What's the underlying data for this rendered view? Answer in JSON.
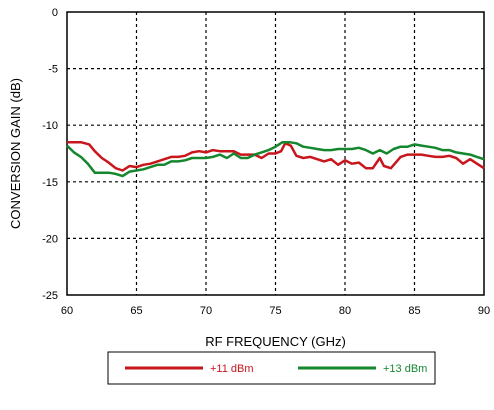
{
  "chart_data": {
    "type": "line",
    "title": "",
    "xlabel": "RF FREQUENCY (GHz)",
    "ylabel": "CONVERSION GAIN (dB)",
    "xlim": [
      60,
      90
    ],
    "ylim": [
      -25,
      0
    ],
    "x_ticks": [
      "60",
      "65",
      "70",
      "75",
      "80",
      "85",
      "90"
    ],
    "y_ticks": [
      "0",
      "-5",
      "-10",
      "-15",
      "-20",
      "-25"
    ],
    "grid": true,
    "legend_position": "bottom",
    "series": [
      {
        "name": "+11 dBm",
        "color": "#c8161d",
        "points": [
          [
            60,
            -11.5
          ],
          [
            61,
            -11.5
          ],
          [
            61.6,
            -11.7
          ],
          [
            62,
            -12.3
          ],
          [
            62.5,
            -12.9
          ],
          [
            63,
            -13.3
          ],
          [
            63.5,
            -13.8
          ],
          [
            64,
            -14.0
          ],
          [
            64.5,
            -13.6
          ],
          [
            65,
            -13.7
          ],
          [
            65.5,
            -13.5
          ],
          [
            66,
            -13.4
          ],
          [
            66.5,
            -13.2
          ],
          [
            67,
            -13.0
          ],
          [
            67.5,
            -12.8
          ],
          [
            68,
            -12.8
          ],
          [
            68.5,
            -12.7
          ],
          [
            69,
            -12.4
          ],
          [
            69.5,
            -12.3
          ],
          [
            70,
            -12.4
          ],
          [
            70.5,
            -12.2
          ],
          [
            71,
            -12.3
          ],
          [
            71.5,
            -12.3
          ],
          [
            72,
            -12.3
          ],
          [
            72.5,
            -12.6
          ],
          [
            73,
            -12.6
          ],
          [
            73.5,
            -12.6
          ],
          [
            74,
            -12.9
          ],
          [
            74.5,
            -12.5
          ],
          [
            75,
            -12.5
          ],
          [
            75.4,
            -12.3
          ],
          [
            75.7,
            -11.6
          ],
          [
            76.1,
            -11.8
          ],
          [
            76.5,
            -12.7
          ],
          [
            77,
            -12.9
          ],
          [
            77.5,
            -12.8
          ],
          [
            78,
            -13.0
          ],
          [
            78.5,
            -13.2
          ],
          [
            79,
            -13.0
          ],
          [
            79.5,
            -13.5
          ],
          [
            80,
            -13.1
          ],
          [
            80.5,
            -13.4
          ],
          [
            81,
            -13.3
          ],
          [
            81.5,
            -13.8
          ],
          [
            82,
            -13.8
          ],
          [
            82.5,
            -12.9
          ],
          [
            82.8,
            -13.6
          ],
          [
            83.3,
            -13.8
          ],
          [
            84,
            -12.8
          ],
          [
            84.5,
            -12.6
          ],
          [
            85,
            -12.6
          ],
          [
            85.5,
            -12.6
          ],
          [
            86,
            -12.7
          ],
          [
            86.5,
            -12.8
          ],
          [
            87,
            -12.8
          ],
          [
            87.5,
            -12.7
          ],
          [
            88,
            -12.9
          ],
          [
            88.5,
            -13.4
          ],
          [
            89,
            -13.0
          ],
          [
            89.5,
            -13.4
          ],
          [
            90,
            -13.8
          ]
        ]
      },
      {
        "name": "+13 dBm",
        "color": "#15872e",
        "points": [
          [
            60,
            -11.8
          ],
          [
            60.5,
            -12.4
          ],
          [
            61,
            -12.8
          ],
          [
            61.5,
            -13.4
          ],
          [
            62,
            -14.2
          ],
          [
            63,
            -14.2
          ],
          [
            63.5,
            -14.3
          ],
          [
            64,
            -14.5
          ],
          [
            64.5,
            -14.1
          ],
          [
            65,
            -14.0
          ],
          [
            65.5,
            -13.9
          ],
          [
            66,
            -13.7
          ],
          [
            66.5,
            -13.5
          ],
          [
            67,
            -13.5
          ],
          [
            67.5,
            -13.2
          ],
          [
            68,
            -13.2
          ],
          [
            68.5,
            -13.1
          ],
          [
            69,
            -12.9
          ],
          [
            69.5,
            -12.9
          ],
          [
            70,
            -12.9
          ],
          [
            70.5,
            -12.8
          ],
          [
            71,
            -12.6
          ],
          [
            71.5,
            -12.9
          ],
          [
            72,
            -12.5
          ],
          [
            72.5,
            -12.9
          ],
          [
            73,
            -12.9
          ],
          [
            73.5,
            -12.6
          ],
          [
            74,
            -12.4
          ],
          [
            74.5,
            -12.2
          ],
          [
            75,
            -11.9
          ],
          [
            75.5,
            -11.5
          ],
          [
            76,
            -11.5
          ],
          [
            76.5,
            -11.6
          ],
          [
            77,
            -11.9
          ],
          [
            77.5,
            -12.0
          ],
          [
            78,
            -12.1
          ],
          [
            78.5,
            -12.2
          ],
          [
            79,
            -12.2
          ],
          [
            79.5,
            -12.1
          ],
          [
            80,
            -12.1
          ],
          [
            80.5,
            -12.1
          ],
          [
            81,
            -12.0
          ],
          [
            81.5,
            -12.2
          ],
          [
            82,
            -12.5
          ],
          [
            82.5,
            -12.2
          ],
          [
            83,
            -12.5
          ],
          [
            83.5,
            -12.1
          ],
          [
            84,
            -11.9
          ],
          [
            84.5,
            -11.9
          ],
          [
            85,
            -11.7
          ],
          [
            85.5,
            -11.8
          ],
          [
            86,
            -11.9
          ],
          [
            86.5,
            -12.0
          ],
          [
            87,
            -12.2
          ],
          [
            87.5,
            -12.2
          ],
          [
            88,
            -12.4
          ],
          [
            88.5,
            -12.5
          ],
          [
            89,
            -12.6
          ],
          [
            89.5,
            -12.8
          ],
          [
            90,
            -13.0
          ]
        ]
      }
    ]
  }
}
